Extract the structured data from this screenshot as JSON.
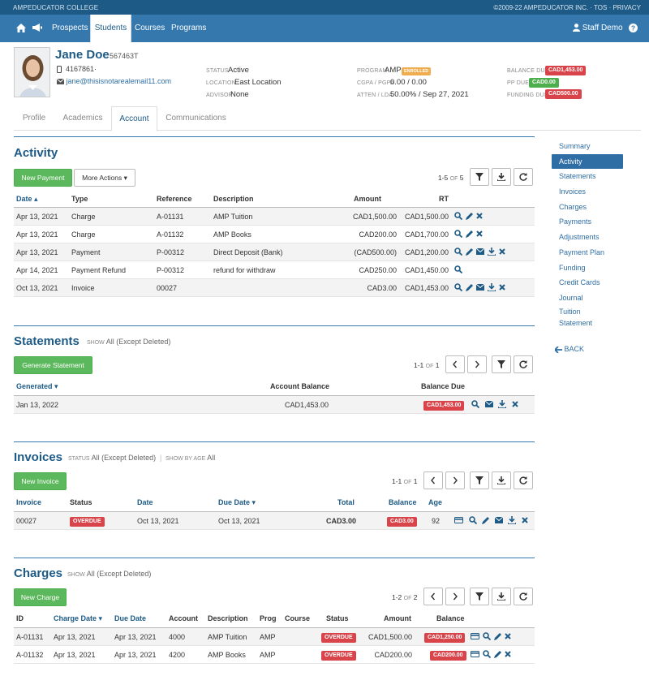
{
  "topbar": {
    "college": "AMPEDUCATOR COLLEGE",
    "copyright": "©2009-22 AMPEDUCATOR INC.",
    "tos": "TOS",
    "privacy": "PRIVACY"
  },
  "nav": {
    "items": [
      "Prospects",
      "Students",
      "Courses",
      "Programs"
    ],
    "active": "Students",
    "user": "Staff Demo"
  },
  "student": {
    "name": "Jane Doe",
    "id": "567463T",
    "phone": "4167861·",
    "email": "jane@thisisnotarealemail11.com",
    "status_label": "STATUS",
    "status": "Active",
    "location_label": "LOCATION",
    "location": "East Location",
    "advisor_label": "ADVISOR",
    "advisor": "None",
    "program_label": "PROGRAM",
    "program": "AMP",
    "program_badge": "ENROLLED",
    "cgpa_label": "CGPA / PGPA",
    "cgpa": "0.00 / 0.00",
    "atten_label": "ATTEN / LDA",
    "atten": "50.00% / Sep 27, 2021",
    "balance_due_label": "BALANCE DUE",
    "balance_due": "CAD1,453.00",
    "pp_due_label": "PP DUE",
    "pp_due": "CAD0.00",
    "funding_due_label": "FUNDING DUE",
    "funding_due": "CAD500.00"
  },
  "tabs": [
    "Profile",
    "Academics",
    "Account",
    "Communications"
  ],
  "sidebar": {
    "items": [
      "Summary",
      "Activity",
      "Statements",
      "Invoices",
      "Charges",
      "Payments",
      "Adjustments",
      "Payment Plan",
      "Funding",
      "Credit Cards",
      "Journal",
      "Tuition",
      "Statement"
    ],
    "back": "BACK"
  },
  "activity": {
    "title": "Activity",
    "new_payment": "New Payment",
    "more_actions": "More Actions",
    "pager_range": "1-5",
    "pager_of": "OF",
    "pager_total": "5",
    "headers": [
      "Date",
      "Type",
      "Reference",
      "Description",
      "Amount",
      "RT"
    ],
    "rows": [
      {
        "date": "Apr 13, 2021",
        "type": "Charge",
        "ref": "A-01131",
        "desc": "AMP Tuition",
        "amount": "CAD1,500.00",
        "rt": "CAD1,500.00"
      },
      {
        "date": "Apr 13, 2021",
        "type": "Charge",
        "ref": "A-01132",
        "desc": "AMP Books",
        "amount": "CAD200.00",
        "rt": "CAD1,700.00"
      },
      {
        "date": "Apr 13, 2021",
        "type": "Payment",
        "ref": "P-00312",
        "desc": "Direct Deposit (Bank)",
        "amount": "(CAD500.00)",
        "rt": "CAD1,200.00"
      },
      {
        "date": "Apr 14, 2021",
        "type": "Payment Refund",
        "ref": "P-00312",
        "desc": "refund for withdraw",
        "amount": "CAD250.00",
        "rt": "CAD1,450.00"
      },
      {
        "date": "Oct 13, 2021",
        "type": "Invoice",
        "ref": "00027",
        "desc": "",
        "amount": "CAD3.00",
        "rt": "CAD1,453.00"
      }
    ]
  },
  "statements": {
    "title": "Statements",
    "show_label": "SHOW",
    "show_value": "All (Except Deleted)",
    "generate": "Generate Statement",
    "pager_range": "1-1",
    "pager_of": "OF",
    "pager_total": "1",
    "headers": [
      "Generated",
      "Account Balance",
      "Balance Due"
    ],
    "rows": [
      {
        "generated": "Jan 13, 2022",
        "balance": "CAD1,453.00",
        "due": "CAD1,453.00"
      }
    ]
  },
  "invoices": {
    "title": "Invoices",
    "status_label": "STATUS",
    "status_value": "All (Except Deleted)",
    "age_label": "SHOW BY AGE",
    "age_value": "All",
    "new_invoice": "New Invoice",
    "pager_range": "1-1",
    "pager_of": "OF",
    "pager_total": "1",
    "headers": [
      "Invoice",
      "Status",
      "Date",
      "Due Date",
      "Total",
      "Balance",
      "Age"
    ],
    "rows": [
      {
        "invoice": "00027",
        "status": "OVERDUE",
        "date": "Oct 13, 2021",
        "due": "Oct 13, 2021",
        "total": "CAD3.00",
        "balance": "CAD3.00",
        "age": "92"
      }
    ]
  },
  "charges": {
    "title": "Charges",
    "show_label": "SHOW",
    "show_value": "All (Except Deleted)",
    "new_charge": "New Charge",
    "pager_range": "1-2",
    "pager_of": "OF",
    "pager_total": "2",
    "headers": [
      "ID",
      "Charge Date",
      "Due Date",
      "Account",
      "Description",
      "Prog",
      "Course",
      "Status",
      "Amount",
      "Balance"
    ],
    "rows": [
      {
        "id": "A-01131",
        "charge_date": "Apr 13, 2021",
        "due": "Apr 13, 2021",
        "account": "4000",
        "desc": "AMP Tuition",
        "prog": "AMP",
        "status": "OVERDUE",
        "amount": "CAD1,500.00",
        "balance": "CAD1,250.00"
      },
      {
        "id": "A-01132",
        "charge_date": "Apr 13, 2021",
        "due": "Apr 13, 2021",
        "account": "4200",
        "desc": "AMP Books",
        "prog": "AMP",
        "status": "OVERDUE",
        "amount": "CAD200.00",
        "balance": "CAD200.00"
      }
    ]
  },
  "colors": {
    "primary": "#3478ae",
    "dark": "#1d5a86",
    "green": "#5cb85c",
    "red": "#d9434a"
  }
}
